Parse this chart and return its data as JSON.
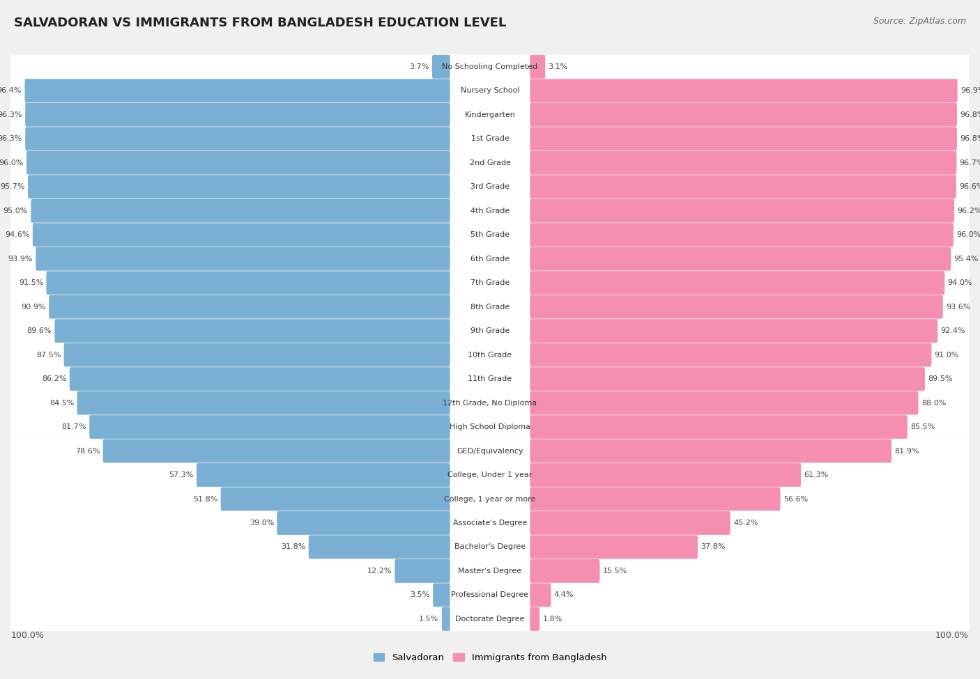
{
  "title": "SALVADORAN VS IMMIGRANTS FROM BANGLADESH EDUCATION LEVEL",
  "source": "Source: ZipAtlas.com",
  "categories": [
    "No Schooling Completed",
    "Nursery School",
    "Kindergarten",
    "1st Grade",
    "2nd Grade",
    "3rd Grade",
    "4th Grade",
    "5th Grade",
    "6th Grade",
    "7th Grade",
    "8th Grade",
    "9th Grade",
    "10th Grade",
    "11th Grade",
    "12th Grade, No Diploma",
    "High School Diploma",
    "GED/Equivalency",
    "College, Under 1 year",
    "College, 1 year or more",
    "Associate's Degree",
    "Bachelor's Degree",
    "Master's Degree",
    "Professional Degree",
    "Doctorate Degree"
  ],
  "salvadoran": [
    3.7,
    96.4,
    96.3,
    96.3,
    96.0,
    95.7,
    95.0,
    94.6,
    93.9,
    91.5,
    90.9,
    89.6,
    87.5,
    86.2,
    84.5,
    81.7,
    78.6,
    57.3,
    51.8,
    39.0,
    31.8,
    12.2,
    3.5,
    1.5
  ],
  "bangladesh": [
    3.1,
    96.9,
    96.8,
    96.8,
    96.7,
    96.6,
    96.2,
    96.0,
    95.4,
    94.0,
    93.6,
    92.4,
    91.0,
    89.5,
    88.0,
    85.5,
    81.9,
    61.3,
    56.6,
    45.2,
    37.8,
    15.5,
    4.4,
    1.8
  ],
  "salvadoran_color": "#7bafd4",
  "bangladesh_color": "#f48fb1",
  "background_color": "#f0f0f0",
  "row_bg_color": "#ffffff",
  "legend_salvadoran": "Salvadoran",
  "legend_bangladesh": "Immigrants from Bangladesh",
  "title_fontsize": 13,
  "source_fontsize": 9,
  "label_fontsize": 8,
  "value_fontsize": 8
}
